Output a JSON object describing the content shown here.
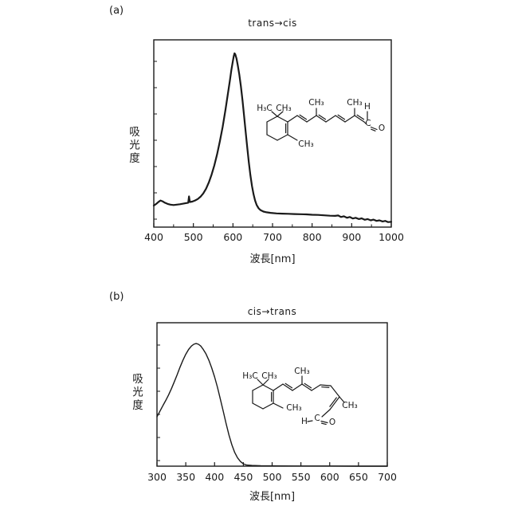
{
  "colors": {
    "ink": "#1a1a1a",
    "background": "#ffffff"
  },
  "chart_data": [
    {
      "id": "a",
      "panel_label": "(a)",
      "type": "line",
      "title": "trans→cis",
      "xlabel": "波長[nm]",
      "ylabel": "吸光度",
      "xlim": [
        400,
        1000
      ],
      "x_ticks": [
        400,
        500,
        600,
        700,
        800,
        900,
        1000
      ],
      "x_minor_tick_step": 50,
      "y_tick_count": 7,
      "grid": false,
      "peak_nm": 604,
      "points": [
        [
          400,
          0.115
        ],
        [
          406,
          0.124
        ],
        [
          412,
          0.135
        ],
        [
          417,
          0.142
        ],
        [
          422,
          0.138
        ],
        [
          428,
          0.13
        ],
        [
          435,
          0.124
        ],
        [
          442,
          0.12
        ],
        [
          450,
          0.118
        ],
        [
          458,
          0.12
        ],
        [
          466,
          0.122
        ],
        [
          474,
          0.125
        ],
        [
          481,
          0.128
        ],
        [
          487,
          0.13
        ],
        [
          489,
          0.164
        ],
        [
          491,
          0.134
        ],
        [
          497,
          0.136
        ],
        [
          504,
          0.142
        ],
        [
          511,
          0.15
        ],
        [
          518,
          0.162
        ],
        [
          525,
          0.18
        ],
        [
          532,
          0.205
        ],
        [
          539,
          0.238
        ],
        [
          546,
          0.28
        ],
        [
          553,
          0.33
        ],
        [
          560,
          0.39
        ],
        [
          567,
          0.458
        ],
        [
          574,
          0.535
        ],
        [
          581,
          0.625
        ],
        [
          587,
          0.71
        ],
        [
          592,
          0.78
        ],
        [
          596,
          0.838
        ],
        [
          600,
          0.888
        ],
        [
          602,
          0.912
        ],
        [
          604,
          0.928
        ],
        [
          606,
          0.922
        ],
        [
          609,
          0.9
        ],
        [
          612,
          0.866
        ],
        [
          616,
          0.815
        ],
        [
          620,
          0.752
        ],
        [
          624,
          0.678
        ],
        [
          628,
          0.598
        ],
        [
          632,
          0.512
        ],
        [
          636,
          0.428
        ],
        [
          640,
          0.348
        ],
        [
          644,
          0.278
        ],
        [
          648,
          0.22
        ],
        [
          652,
          0.175
        ],
        [
          656,
          0.142
        ],
        [
          660,
          0.118
        ],
        [
          665,
          0.1
        ],
        [
          670,
          0.09
        ],
        [
          677,
          0.083
        ],
        [
          685,
          0.079
        ],
        [
          695,
          0.076
        ],
        [
          710,
          0.073
        ],
        [
          725,
          0.072
        ],
        [
          740,
          0.071
        ],
        [
          755,
          0.07
        ],
        [
          770,
          0.069
        ],
        [
          785,
          0.068
        ],
        [
          800,
          0.066
        ],
        [
          815,
          0.065
        ],
        [
          830,
          0.063
        ],
        [
          845,
          0.061
        ],
        [
          858,
          0.06
        ],
        [
          866,
          0.062
        ],
        [
          873,
          0.054
        ],
        [
          880,
          0.058
        ],
        [
          888,
          0.05
        ],
        [
          895,
          0.054
        ],
        [
          903,
          0.046
        ],
        [
          910,
          0.05
        ],
        [
          918,
          0.043
        ],
        [
          925,
          0.047
        ],
        [
          933,
          0.039
        ],
        [
          940,
          0.043
        ],
        [
          948,
          0.036
        ],
        [
          955,
          0.04
        ],
        [
          963,
          0.033
        ],
        [
          970,
          0.036
        ],
        [
          978,
          0.03
        ],
        [
          985,
          0.033
        ],
        [
          992,
          0.027
        ],
        [
          1000,
          0.028
        ]
      ]
    },
    {
      "id": "b",
      "panel_label": "(b)",
      "type": "line",
      "title": "cis→trans",
      "xlabel": "波長[nm]",
      "ylabel": "吸光度",
      "xlim": [
        300,
        700
      ],
      "x_ticks": [
        300,
        350,
        400,
        450,
        500,
        550,
        600,
        650,
        700
      ],
      "x_minor_tick_step": 0,
      "y_tick_count": 6,
      "grid": false,
      "peak_nm": 369,
      "points": [
        [
          300,
          0.344
        ],
        [
          305,
          0.382
        ],
        [
          310,
          0.42
        ],
        [
          315,
          0.456
        ],
        [
          320,
          0.496
        ],
        [
          325,
          0.54
        ],
        [
          330,
          0.588
        ],
        [
          335,
          0.637
        ],
        [
          340,
          0.69
        ],
        [
          345,
          0.738
        ],
        [
          350,
          0.78
        ],
        [
          355,
          0.814
        ],
        [
          360,
          0.838
        ],
        [
          364,
          0.85
        ],
        [
          368,
          0.855
        ],
        [
          372,
          0.85
        ],
        [
          376,
          0.838
        ],
        [
          380,
          0.816
        ],
        [
          385,
          0.784
        ],
        [
          390,
          0.74
        ],
        [
          395,
          0.686
        ],
        [
          400,
          0.622
        ],
        [
          405,
          0.55
        ],
        [
          410,
          0.468
        ],
        [
          415,
          0.384
        ],
        [
          420,
          0.298
        ],
        [
          425,
          0.218
        ],
        [
          430,
          0.15
        ],
        [
          435,
          0.096
        ],
        [
          440,
          0.058
        ],
        [
          445,
          0.032
        ],
        [
          450,
          0.016
        ],
        [
          456,
          0.008
        ],
        [
          465,
          0.005
        ],
        [
          480,
          0.003
        ],
        [
          500,
          0.002
        ],
        [
          540,
          0.001
        ],
        [
          600,
          0.001
        ],
        [
          650,
          0.0
        ],
        [
          700,
          0.0
        ]
      ]
    }
  ],
  "molecules": {
    "a": {
      "labels": {
        "gem1": "H₃C",
        "gem2": "CH₃",
        "ring_methyl": "CH₃",
        "chain_methyl_1": "CH₃",
        "chain_methyl_2": "CH₃",
        "aldehyde_h": "H",
        "aldehyde_c": "C",
        "aldehyde_o": "O"
      }
    },
    "b": {
      "labels": {
        "gem1": "H₃C",
        "gem2": "CH₃",
        "ring_methyl": "CH₃",
        "chain_methyl_1": "CH₃",
        "chain_methyl_2": "CH₃",
        "aldehyde_h": "H",
        "aldehyde_c": "C",
        "aldehyde_o": "O"
      }
    }
  }
}
